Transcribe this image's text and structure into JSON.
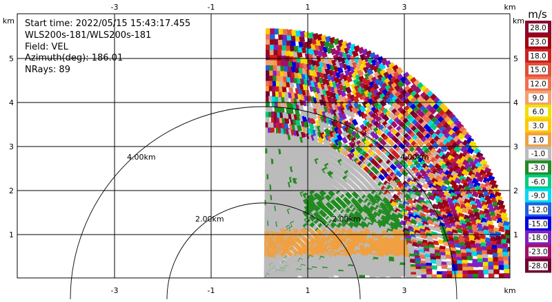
{
  "info": {
    "start_time": "Start time: 2022/05/15 15:43:17.455",
    "instrument": "WLS200s-181/WLS200s-181",
    "field": "Field: VEL",
    "azimuth": "Azimuth(deg): 186.01",
    "nrays": "NRays: 89"
  },
  "axes": {
    "unit": "km",
    "x_ticks": [
      "-3",
      "-1",
      "1",
      "3"
    ],
    "y_ticks": [
      "5",
      "4",
      "3",
      "2",
      "1"
    ]
  },
  "range_rings": [
    "4.00km",
    "2.00km",
    "4.00km",
    "2.00km"
  ],
  "colorbar": {
    "unit": "m/s",
    "labels": [
      "28.0",
      "23.0",
      "18.0",
      "15.0",
      "12.0",
      "9.0",
      "6.0",
      "3.0",
      "1.0",
      "-1.0",
      "-3.0",
      "-6.0",
      "-9.0",
      "-12.0",
      "-15.0",
      "-18.0",
      "-23.0",
      "-28.0"
    ],
    "colors": [
      "#8b0a2e",
      "#a00010",
      "#cc2020",
      "#e0503a",
      "#f07050",
      "#f5a070",
      "#f0e000",
      "#ffc800",
      "#f0a040",
      "#bbbbbb",
      "#228b22",
      "#00cc80",
      "#00d8f0",
      "#2060e0",
      "#0000e0",
      "#8020c0",
      "#a0106a",
      "#700030"
    ]
  },
  "chart_data": {
    "type": "scatter",
    "field": "VEL",
    "x_range_km": [
      -5.05,
      4.95
    ],
    "y_range_km": [
      0,
      5.35
    ],
    "x_ticks": [
      -3,
      -1,
      1,
      3
    ],
    "y_ticks": [
      1,
      2,
      3,
      4,
      5
    ],
    "range_rings_km": [
      2,
      4
    ],
    "max_range_km": 5.1,
    "colorbar_range": [
      -28,
      28
    ],
    "grid": true
  }
}
